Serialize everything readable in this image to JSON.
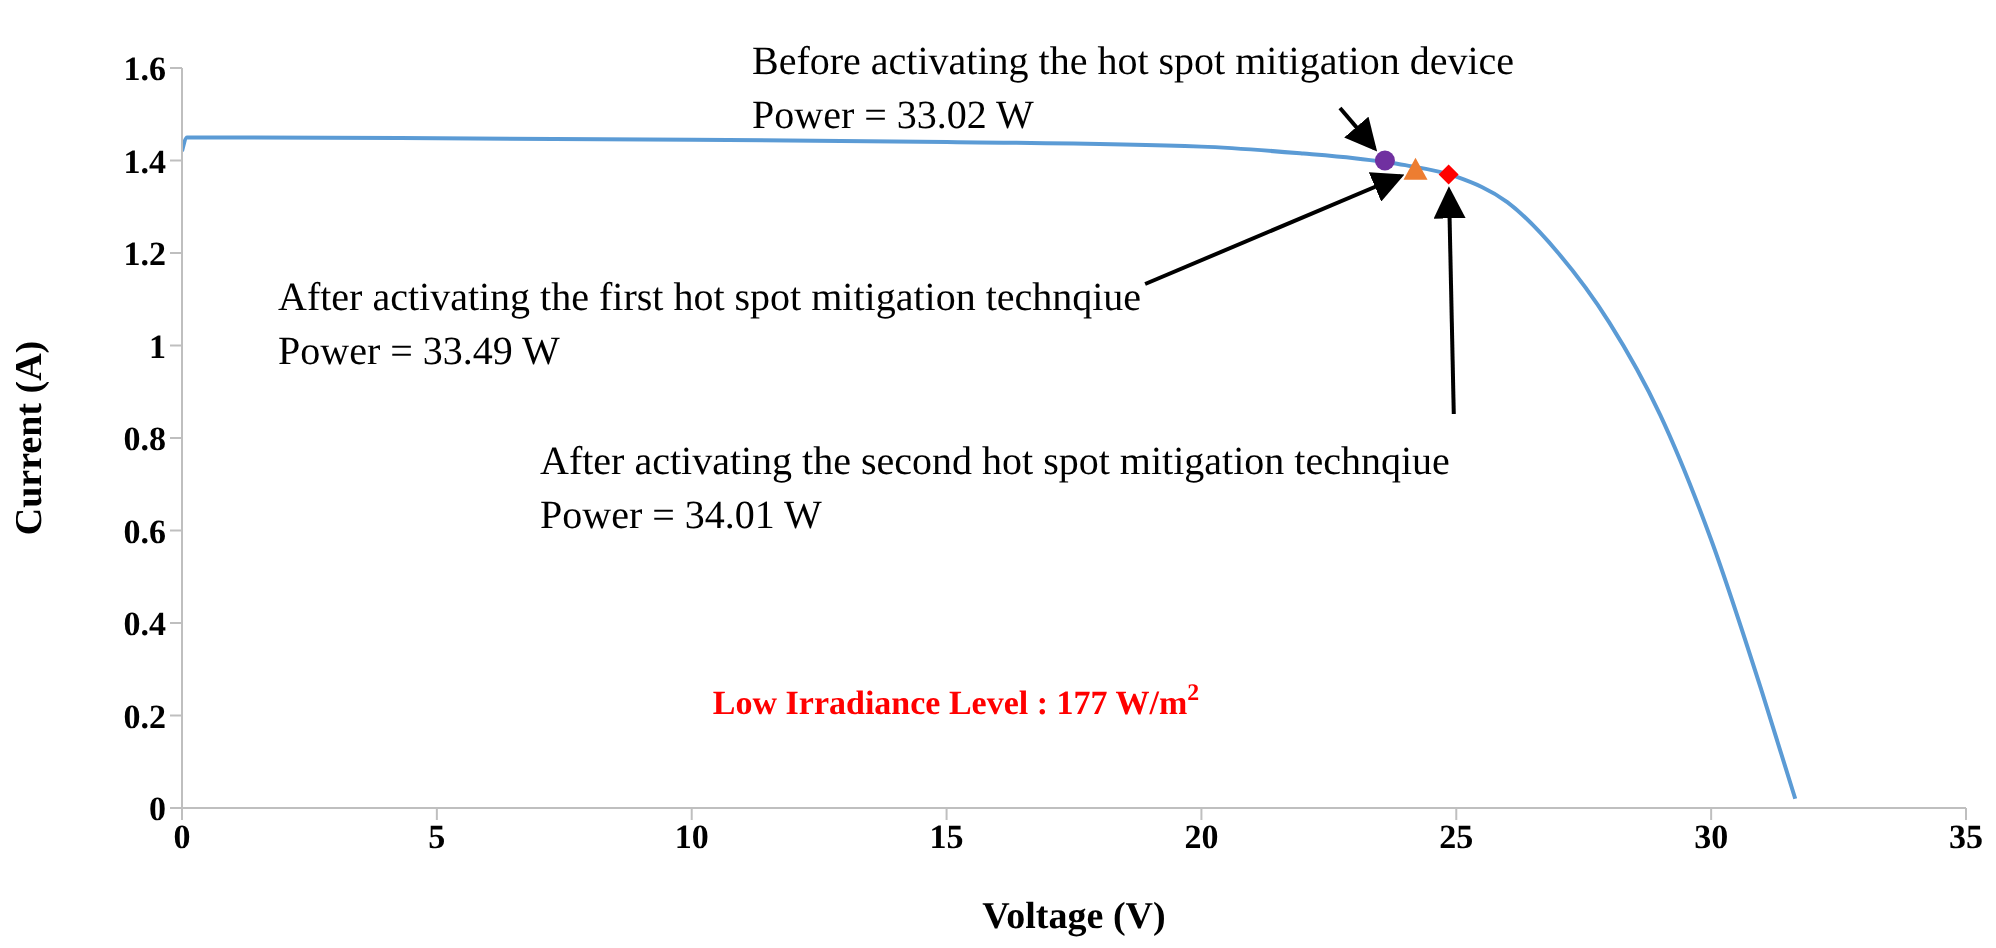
{
  "chart_data": {
    "type": "line",
    "xlabel": "Voltage (V)",
    "ylabel": "Current (A)",
    "xlim": [
      0,
      35
    ],
    "xticks": [
      0,
      5,
      10,
      15,
      20,
      25,
      30,
      35
    ],
    "ylim": [
      0,
      1.6
    ],
    "yticks": [
      0,
      0.2,
      0.4,
      0.6,
      0.8,
      1,
      1.2,
      1.4,
      1.6
    ],
    "series": [
      {
        "color": "#5b9bd5",
        "marker": "none",
        "x": [
          0,
          0.1,
          5,
          10,
          15,
          20,
          22,
          23,
          24,
          25,
          26,
          27,
          28,
          29,
          30,
          31,
          31.65
        ],
        "values": [
          1.42,
          1.45,
          1.448,
          1.445,
          1.44,
          1.43,
          1.415,
          1.405,
          1.39,
          1.365,
          1.31,
          1.2,
          1.05,
          0.85,
          0.58,
          0.25,
          0.02
        ]
      },
      {
        "type": "scatter",
        "color": "#7030a0",
        "marker": "circle",
        "x": [
          23.6
        ],
        "values": [
          1.4
        ]
      },
      {
        "type": "scatter",
        "color": "#ed7d31",
        "marker": "triangle",
        "x": [
          24.2
        ],
        "values": [
          1.38
        ]
      },
      {
        "type": "scatter",
        "color": "#ff0000",
        "marker": "diamond",
        "x": [
          24.85
        ],
        "values": [
          1.37
        ]
      }
    ],
    "annotations": [
      {
        "text": "Before activating the hot spot mitigation device\nPower = 33.02 W",
        "x": 23.6,
        "y": 1.4
      },
      {
        "text": "After activating the first hot spot mitigation technqiue\nPower = 33.49 W",
        "x": 24.2,
        "y": 1.38
      },
      {
        "text": "After activating the second hot spot mitigation technqiue\nPower = 34.01 W",
        "x": 24.85,
        "y": 1.37
      },
      "Low Irradiance Level : 177 W/m$^{2}$"
    ]
  }
}
